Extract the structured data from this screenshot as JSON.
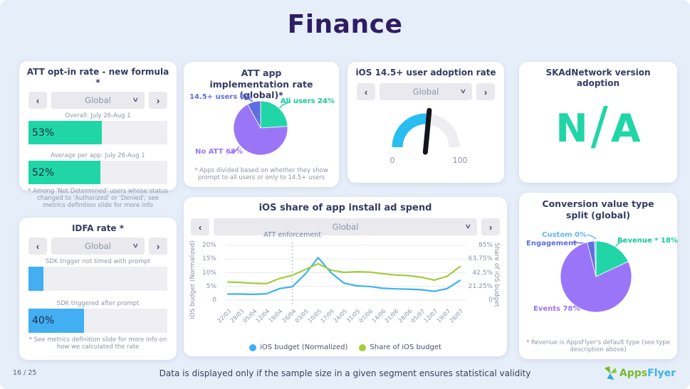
{
  "page": {
    "title": "Finance",
    "page_number": "16 / 25",
    "footer_note": "Data is displayed only if the sample size in a given segment ensures statistical validity",
    "background": "#e6eef9"
  },
  "ui": {
    "prev_arrow": "‹",
    "next_arrow": "›",
    "dropdown_chevron": "∨"
  },
  "logo": {
    "apps": "Apps",
    "flyer": "Flyer",
    "green": "#7db82d",
    "blue": "#3bb3ea"
  },
  "cards": {
    "att_opt_in": {
      "title": "ATT opt-in rate - new formula *",
      "selector_value": "Global",
      "footnote": "* Among 'Not Determined' users whose status changed to 'Authorized' or 'Denied'; see metrics definition slide for more info"
    },
    "att_pie": {
      "title": "ATT app implementation rate (global)*",
      "footnote": "* Apps divided based on whether they show prompt to all users or only to 14.5+ users"
    },
    "adoption": {
      "title": "iOS 14.5+ user adoption rate",
      "selector_value": "Global"
    },
    "skad": {
      "title": "SKAdNetwork version adoption",
      "value": "N/A"
    },
    "idfa": {
      "title": "IDFA rate *",
      "selector_value": "Global",
      "footnote": "* See metrics definition slide for more info on how we calculated the rate"
    },
    "ad_spend": {
      "title": "iOS share of app install ad spend",
      "selector_value": "Global"
    },
    "conversion": {
      "title": "Conversion value type split (global)",
      "footnote": "* Revenue is AppsFlyer's default type (see type description above)"
    }
  },
  "chart_data": [
    {
      "id": "att-opt-in-bars",
      "type": "bar",
      "categories": [
        "Overall: July 26-Aug 1",
        "Average per app: July 26-Aug 1"
      ],
      "values": [
        53,
        52
      ],
      "data_labels": [
        "53%",
        "52%"
      ],
      "color": "#20d6a7",
      "track": "#efeff3",
      "xlim": [
        0,
        100
      ],
      "unit": "%"
    },
    {
      "id": "att-implementation-pie",
      "type": "pie",
      "labels": [
        "All users",
        "No ATT",
        "14.5+ users"
      ],
      "values": [
        24,
        68,
        8
      ],
      "display_labels": [
        "All users 24%",
        "No ATT 68%",
        "14.5+ users 8%"
      ],
      "colors": [
        "#20d6a7",
        "#9b75f7",
        "#5f6fe3"
      ]
    },
    {
      "id": "ios-adoption-gauge",
      "type": "gauge",
      "min": 0,
      "max": 100,
      "value": 53,
      "min_label": "0",
      "max_label": "100",
      "color": "#29bdf2",
      "track": "#eeeef1"
    },
    {
      "id": "idfa-bars",
      "type": "bar",
      "categories": [
        "SDK trigger not timed with prompt",
        "SDK triggered after prompt"
      ],
      "values": [
        11,
        40
      ],
      "data_labels": [
        "",
        "40%"
      ],
      "color": "#41aff2",
      "track": "#efeff3",
      "xlim": [
        0,
        100
      ],
      "unit": "%"
    },
    {
      "id": "ad-spend-line",
      "type": "line",
      "title": "iOS share of app install ad spend",
      "categories": [
        "22/03",
        "29/03",
        "05/04",
        "12/04",
        "19/04",
        "26/04",
        "03/05",
        "10/05",
        "17/05",
        "24/05",
        "31/05",
        "07/06",
        "14/06",
        "21/06",
        "28/06",
        "05/07",
        "12/07",
        "19/07",
        "26/07"
      ],
      "series": [
        {
          "name": "iOS budget (Normalized)",
          "axis": "left",
          "color": "#3fb1f0",
          "values": [
            2.2,
            2.2,
            2.1,
            2.3,
            4.2,
            4.9,
            9.5,
            15.5,
            10,
            6.2,
            5.2,
            5,
            4.3,
            4.1,
            4,
            3.8,
            3.2,
            4.2,
            7.2
          ]
        },
        {
          "name": "Share of iOS budget",
          "axis": "right",
          "color": "#a3cc3d",
          "values": [
            28,
            27.5,
            26,
            25.5,
            33.5,
            38.5,
            47.5,
            56.5,
            46.5,
            43,
            44,
            43.5,
            41,
            39,
            38,
            35.5,
            31,
            37,
            52
          ]
        }
      ],
      "left_axis": {
        "label": "iOS budget (Normalized)",
        "ticks": [
          "20%",
          "15%",
          "10%",
          "5%",
          "0"
        ],
        "max": 20
      },
      "right_axis": {
        "label": "Share of iOS budget",
        "ticks": [
          "85%",
          "63.75%",
          "42.5%",
          "21.25%",
          "0"
        ],
        "max": 85
      },
      "annotation": {
        "text": "ATT enforcement",
        "category": "26/04",
        "index": 5
      },
      "legend_position": "bottom",
      "grid": true
    },
    {
      "id": "conversion-pie",
      "type": "pie",
      "labels": [
        "Revenue *",
        "Events",
        "Engagement",
        "Custom"
      ],
      "values": [
        18,
        78,
        4,
        0
      ],
      "render_values": [
        18,
        78,
        3.3,
        0.7
      ],
      "display_labels": [
        "Revenue * 18%",
        "Events 78%",
        "Engagement",
        "Custom 0%"
      ],
      "colors": [
        "#20d6a7",
        "#9b75f7",
        "#5f6fe3",
        "#6db9f2"
      ]
    }
  ]
}
